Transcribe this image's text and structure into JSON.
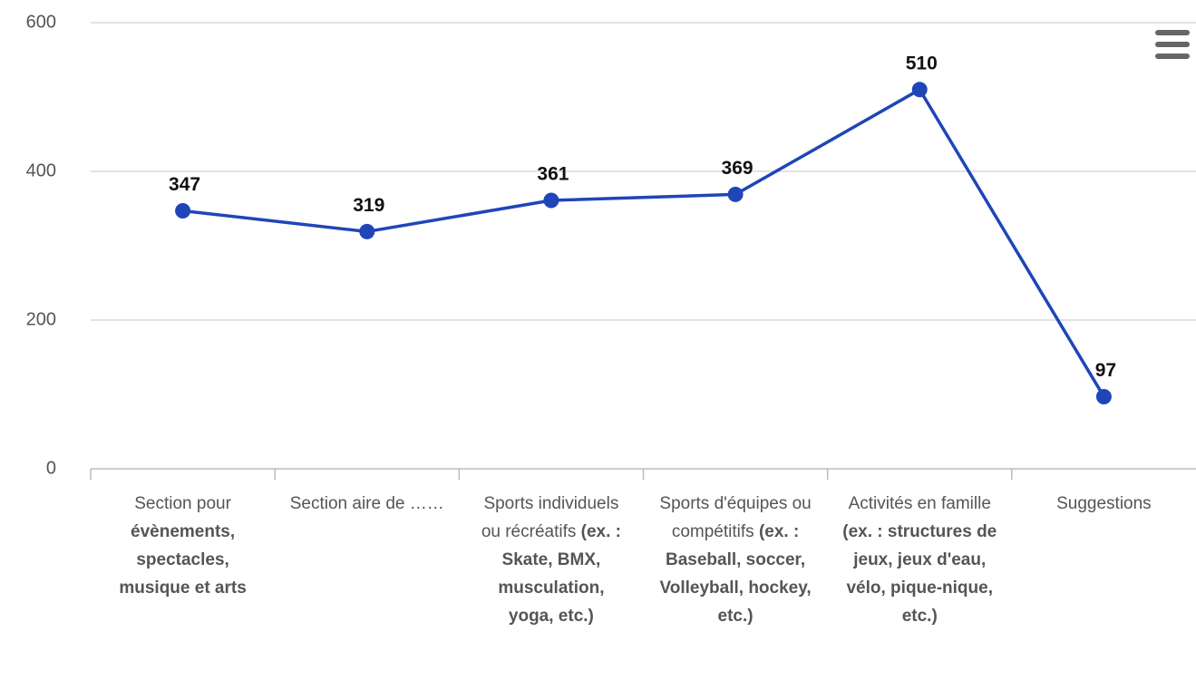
{
  "chart_data": {
    "type": "line",
    "categories": [
      [
        "Section pour ",
        "évènements, spectacles, musique et arts"
      ],
      [
        "Section aire de ……"
      ],
      [
        "Sports individuels ou récréatifs ",
        "(ex. : Skate, BMX, musculation, yoga, etc.)"
      ],
      [
        "Sports d'équipes ou compétitifs ",
        "(ex. : Baseball, soccer, Volleyball, hockey, etc.)"
      ],
      [
        "Activités en famille ",
        "(ex. : structures de jeux, jeux d'eau, vélo, pique-nique, etc.)"
      ],
      [
        "Suggestions"
      ]
    ],
    "values": [
      347,
      319,
      361,
      369,
      510,
      97
    ],
    "color": "#1f45b8",
    "ylim": [
      0,
      600
    ],
    "yticks": [
      0,
      200,
      400,
      600
    ],
    "grid": true
  }
}
